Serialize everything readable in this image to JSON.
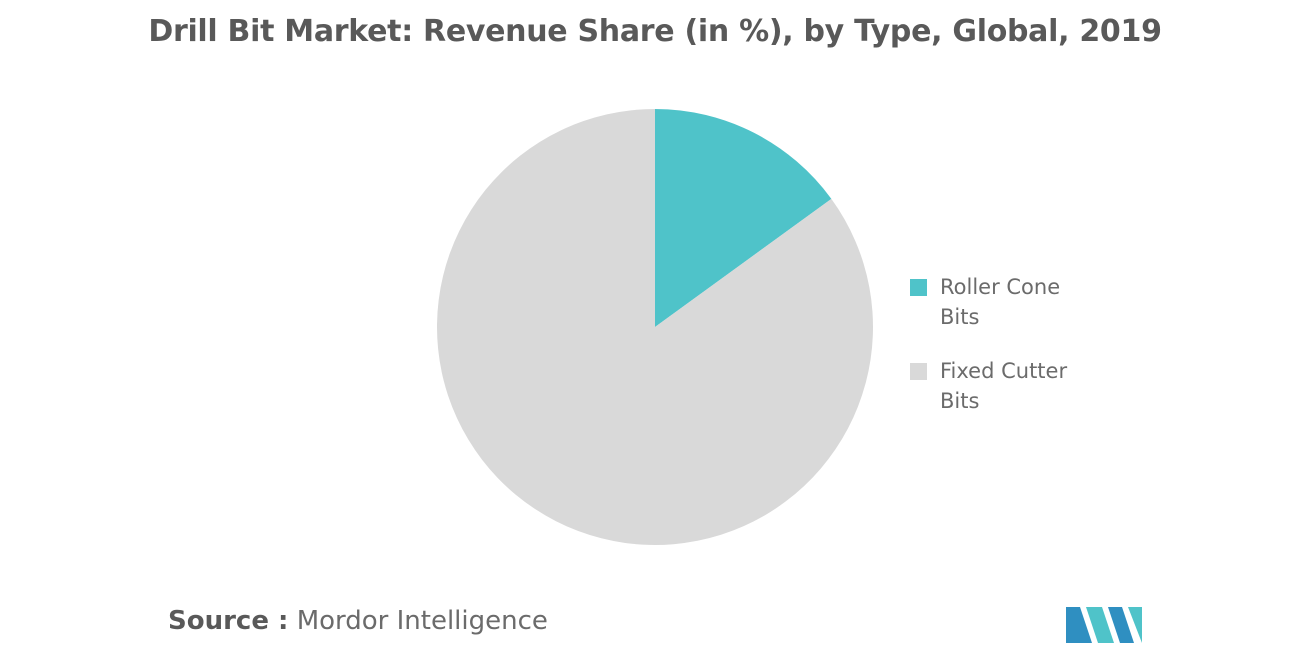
{
  "chart_data": {
    "type": "pie",
    "title": "Drill Bit Market: Revenue Share (in %), by Type, Global, 2019",
    "slices": [
      {
        "label": "Roller Cone Bits",
        "value": 15,
        "color": "#4fc3c9"
      },
      {
        "label": "Fixed Cutter Bits",
        "value": 85,
        "color": "#d9d9d9"
      }
    ],
    "legend_position": "right"
  },
  "source": {
    "label": "Source :",
    "text": "Mordor Intelligence"
  },
  "logo": {
    "icon": "mordor-intelligence-logo-icon",
    "colors": [
      "#2f8fc1",
      "#4fc3c9"
    ]
  }
}
